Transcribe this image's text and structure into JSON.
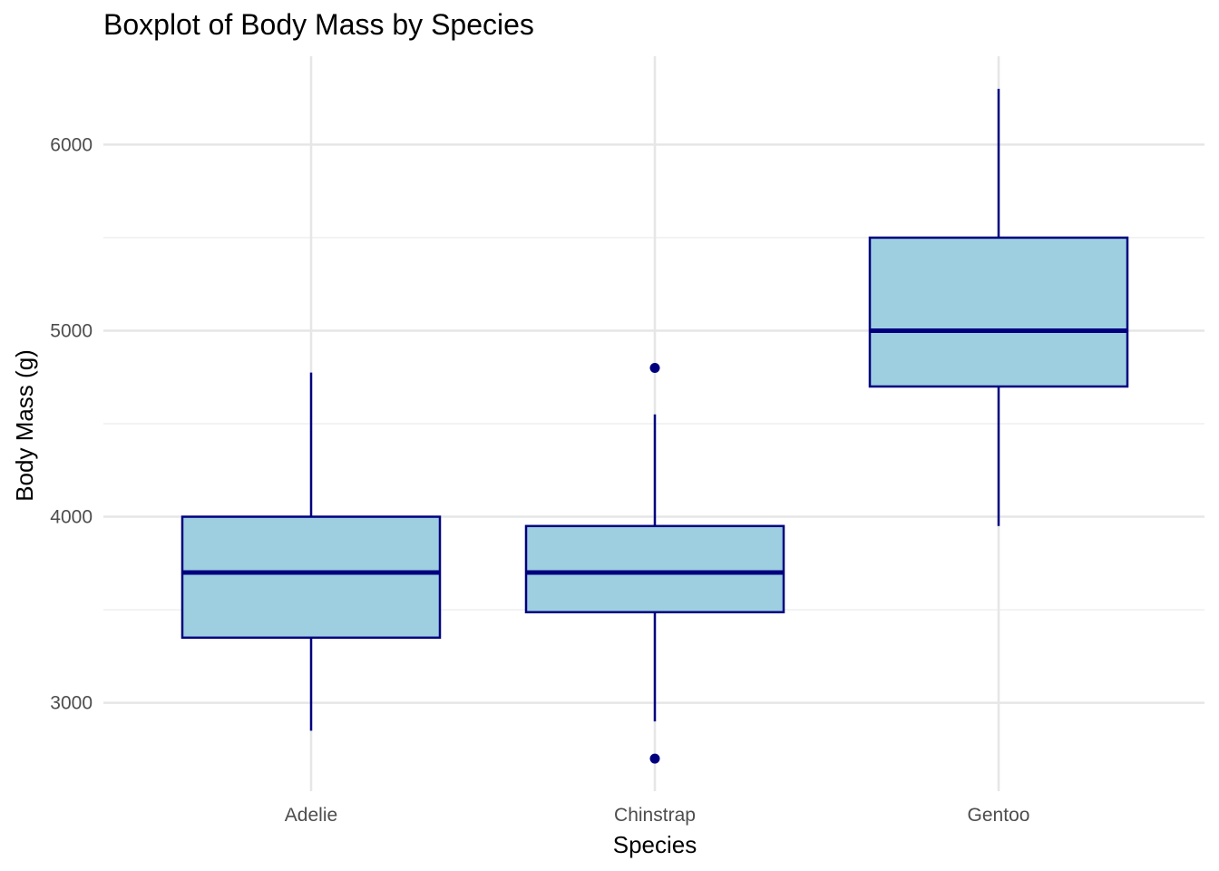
{
  "chart_data": {
    "type": "boxplot",
    "title": "Boxplot of Body Mass by Species",
    "xlabel": "Species",
    "ylabel": "Body Mass (g)",
    "ylim": [
      2525,
      6475
    ],
    "yticks": [
      3000,
      4000,
      5000,
      6000
    ],
    "grid": true,
    "legend": "none",
    "colors": {
      "box_fill": "#9ecfe1",
      "box_stroke": "#00007f",
      "grid_major": "#e6e6e6",
      "grid_minor": "#efefef"
    },
    "categories": [
      "Adelie",
      "Chinstrap",
      "Gentoo"
    ],
    "boxes": [
      {
        "category": "Adelie",
        "whisker_low": 2850,
        "q1": 3350,
        "median": 3700,
        "q3": 4000,
        "whisker_high": 4775,
        "outliers": []
      },
      {
        "category": "Chinstrap",
        "whisker_low": 2900,
        "q1": 3487,
        "median": 3700,
        "q3": 3950,
        "whisker_high": 4550,
        "outliers": [
          2700,
          4800
        ]
      },
      {
        "category": "Gentoo",
        "whisker_low": 3950,
        "q1": 4700,
        "median": 5000,
        "q3": 5500,
        "whisker_high": 6300,
        "outliers": []
      }
    ]
  }
}
